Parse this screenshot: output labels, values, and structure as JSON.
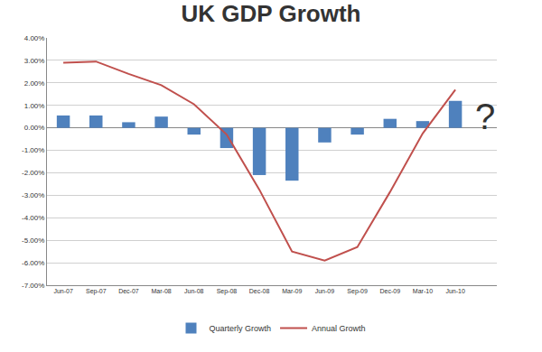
{
  "chart_data": {
    "type": "bar",
    "title": "UK GDP Growth",
    "categories": [
      "Jun-07",
      "Sep-07",
      "Dec-07",
      "Mar-08",
      "Jun-08",
      "Sep-08",
      "Dec-08",
      "Mar-09",
      "Jun-09",
      "Sep-09",
      "Dec-09",
      "Mar-10",
      "Jun-10"
    ],
    "series": [
      {
        "name": "Quarterly Growth",
        "type": "bar",
        "color": "#4f81bd",
        "values": [
          0.55,
          0.55,
          0.25,
          0.5,
          -0.3,
          -0.9,
          -2.1,
          -2.35,
          -0.65,
          -0.3,
          0.4,
          0.3,
          1.2
        ]
      },
      {
        "name": "Annual Growth",
        "type": "line",
        "color": "#c0504d",
        "values": [
          2.9,
          2.95,
          2.4,
          1.9,
          1.05,
          -0.3,
          -2.75,
          -5.5,
          -5.9,
          -5.3,
          -2.85,
          -0.25,
          1.7
        ]
      }
    ],
    "ylim": [
      -7,
      4
    ],
    "yticks": [
      {
        "value": -7,
        "label": "-7.00%"
      },
      {
        "value": -6,
        "label": "-6.00%"
      },
      {
        "value": -5,
        "label": "-5.00%"
      },
      {
        "value": -4,
        "label": "-4.00%"
      },
      {
        "value": -3,
        "label": "-3.00%"
      },
      {
        "value": -2,
        "label": "-2.00%"
      },
      {
        "value": -1,
        "label": "-1.00%"
      },
      {
        "value": 0,
        "label": "0.00%"
      },
      {
        "value": 1,
        "label": "1.00%"
      },
      {
        "value": 2,
        "label": "2.00%"
      },
      {
        "value": 3,
        "label": "3.00%"
      },
      {
        "value": 4,
        "label": "4.00%"
      }
    ],
    "grid": true,
    "legend": "bottom",
    "annotations": [
      {
        "text": "?",
        "category": "Jun-10",
        "y": 0.5
      }
    ]
  }
}
